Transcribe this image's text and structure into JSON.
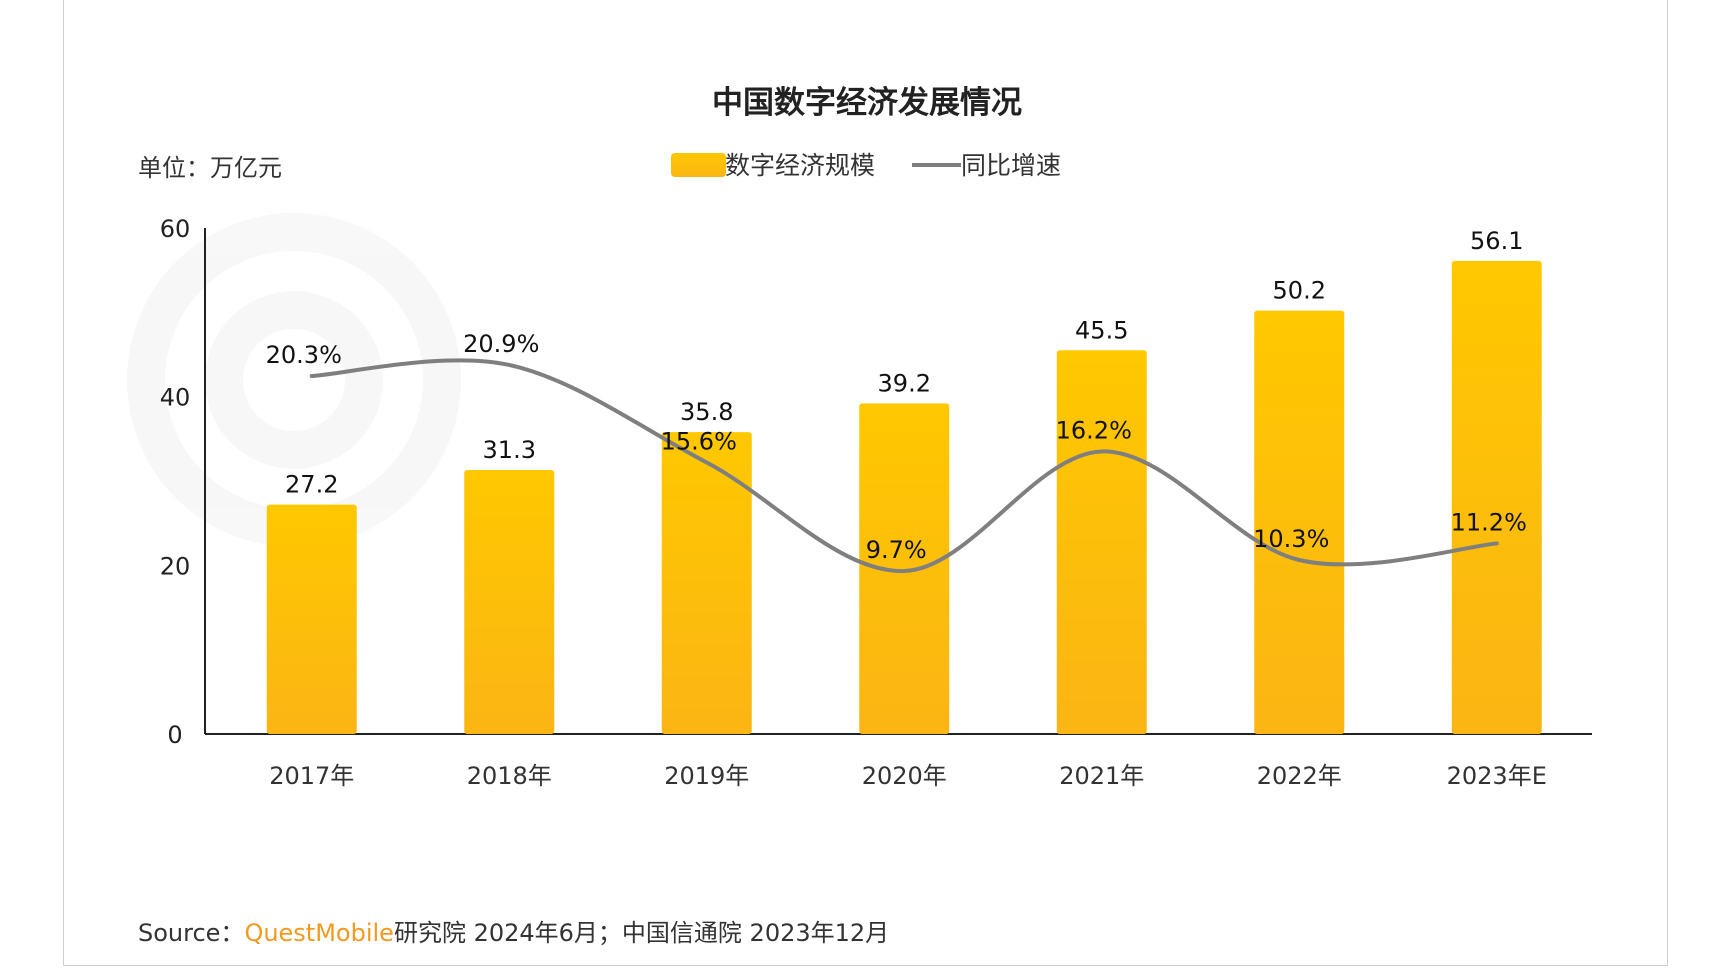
{
  "source": {
    "prefix": "Source：",
    "brand": "QuestMobile",
    "rest": "研究院 2024年6月；中国信通院 2023年12月"
  },
  "colors": {
    "bar_top": "#ffc800",
    "bar_bottom": "#fbb514",
    "line": "#7f7f7f",
    "brand": "#f39a1e"
  },
  "chart_data": {
    "type": "bar",
    "title": "中国数字经济发展情况",
    "unit_label": "单位：万亿元",
    "categories": [
      "2017年",
      "2018年",
      "2019年",
      "2020年",
      "2021年",
      "2022年",
      "2023年E"
    ],
    "y_ticks": [
      "0",
      "20",
      "40",
      "60"
    ],
    "ylim": [
      0,
      60
    ],
    "series": [
      {
        "name": "数字经济规模",
        "kind": "bar",
        "values": [
          27.2,
          31.3,
          35.8,
          39.2,
          45.5,
          50.2,
          56.1
        ],
        "labels": [
          "27.2",
          "31.3",
          "35.8",
          "39.2",
          "45.5",
          "50.2",
          "56.1"
        ]
      },
      {
        "name": "同比增速",
        "kind": "line",
        "values": [
          20.3,
          20.9,
          15.6,
          9.7,
          16.2,
          10.3,
          11.2
        ],
        "labels": [
          "20.3%",
          "20.9%",
          "15.6%",
          "9.7%",
          "16.2%",
          "10.3%",
          "11.2%"
        ]
      }
    ],
    "legend_position": "top-center",
    "grid": false
  }
}
